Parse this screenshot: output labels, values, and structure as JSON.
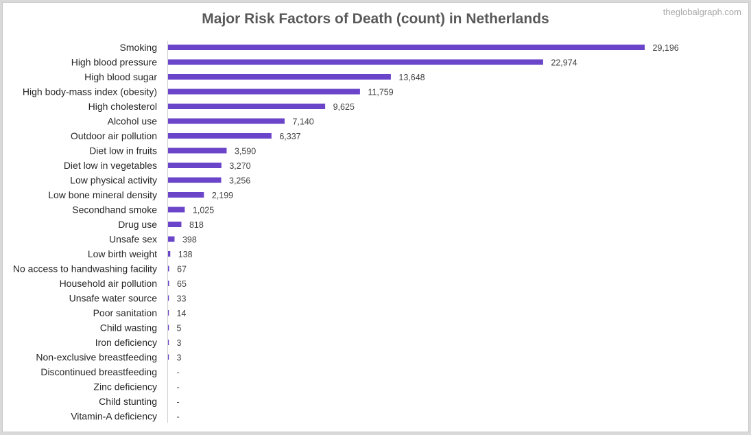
{
  "watermark": "theglobalgraph.com",
  "chart_data": {
    "type": "bar",
    "orientation": "horizontal",
    "title": "Major Risk Factors of Death (count) in Netherlands",
    "xlabel": "",
    "ylabel": "",
    "xlim": [
      0,
      30000
    ],
    "grid": false,
    "legend": "none",
    "bar_color": "#6a45c9",
    "categories": [
      "Smoking",
      "High blood pressure",
      "High blood sugar",
      "High body-mass index (obesity)",
      "High cholesterol",
      "Alcohol use",
      "Outdoor air pollution",
      "Diet low in fruits",
      "Diet low in vegetables",
      "Low physical activity",
      "Low bone mineral density",
      "Secondhand smoke",
      "Drug use",
      "Unsafe sex",
      "Low birth weight",
      "No access to handwashing facility",
      "Household air pollution",
      "Unsafe water source",
      "Poor sanitation",
      "Child wasting",
      "Iron deficiency",
      "Non-exclusive breastfeeding",
      "Discontinued breastfeeding",
      "Zinc deficiency",
      "Child stunting",
      "Vitamin-A deficiency"
    ],
    "values": [
      29196,
      22974,
      13648,
      11759,
      9625,
      7140,
      6337,
      3590,
      3270,
      3256,
      2199,
      1025,
      818,
      398,
      138,
      67,
      65,
      33,
      14,
      5,
      3,
      3,
      0,
      0,
      0,
      0
    ],
    "value_labels": [
      "29,196",
      "22,974",
      "13,648",
      "11,759",
      "9,625",
      "7,140",
      "6,337",
      "3,590",
      "3,270",
      "3,256",
      "2,199",
      "1,025",
      "818",
      "398",
      "138",
      "67",
      "65",
      "33",
      "14",
      "5",
      "3",
      "3",
      "-",
      "-",
      "-",
      "-"
    ]
  }
}
